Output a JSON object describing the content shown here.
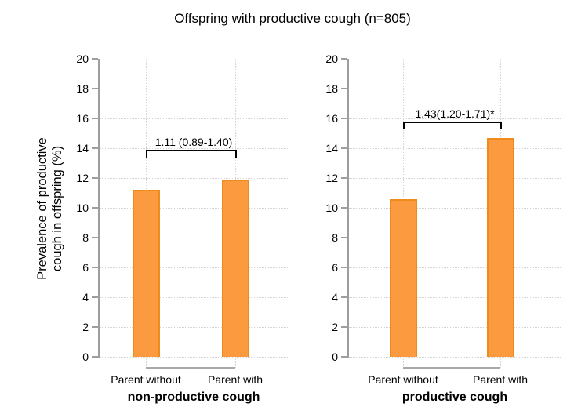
{
  "title": "Offspring with productive cough (n=805)",
  "ylabel_lines": [
    "Prevalence of productive",
    "cough in offspring (%)"
  ],
  "colors": {
    "bar_fill": "#FB9A3E",
    "bar_border": "#EF8A1C",
    "axis": "#9E9E9E",
    "grid": "#D4D4D4",
    "group_line": "#A9A9A9",
    "text": "#000000",
    "background": "#FFFFFF"
  },
  "chart_data": {
    "type": "bar",
    "title": "Offspring with productive cough (n=805)",
    "ylabel": "Prevalence of productive cough in offspring (%)",
    "ylim": [
      0,
      20
    ],
    "yticks": [
      0,
      2,
      4,
      6,
      8,
      10,
      12,
      14,
      16,
      18,
      20
    ],
    "grid": true,
    "panels": [
      {
        "group_label": "non-productive cough",
        "categories": [
          "Parent without",
          "Parent with"
        ],
        "values": [
          11.2,
          11.9
        ],
        "annotation": {
          "text": "1.11 (0.89-1.40)",
          "bracket_y": 13.9
        }
      },
      {
        "group_label": "productive cough",
        "categories": [
          "Parent without",
          "Parent with"
        ],
        "values": [
          10.6,
          14.7
        ],
        "annotation": {
          "text": "1.43(1.20-1.71)*",
          "bracket_y": 15.8
        }
      }
    ]
  }
}
